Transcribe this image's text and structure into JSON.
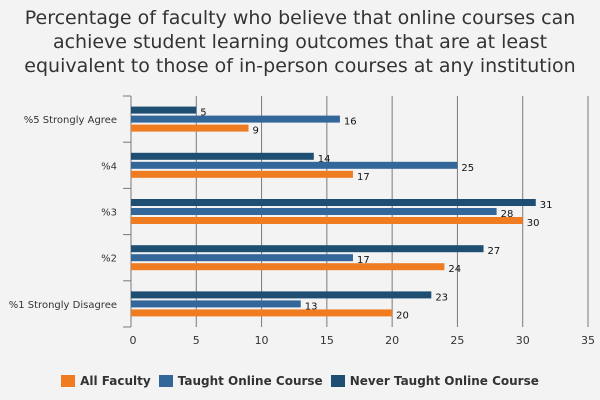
{
  "chart_data": {
    "type": "bar",
    "orientation": "horizontal",
    "title_lines": [
      "Percentage of faculty who believe that online courses can",
      "achieve student learning outcomes that are at least",
      "equivalent to those of in-person courses at any institution"
    ],
    "categories": [
      "%5 Strongly Agree",
      "%4",
      "%3",
      "%2",
      "%1 Strongly Disagree"
    ],
    "series": [
      {
        "name": "Never Taught Online Course",
        "color": "#1f4e73",
        "values": [
          5,
          14,
          31,
          27,
          23
        ]
      },
      {
        "name": "Taught Online Course",
        "color": "#336699",
        "values": [
          16,
          25,
          28,
          17,
          13
        ]
      },
      {
        "name": "All Faculty",
        "color": "#f07c22",
        "values": [
          9,
          17,
          30,
          24,
          20
        ]
      }
    ],
    "legend_order": [
      "All Faculty",
      "Taught Online Course",
      "Never Taught Online Course"
    ],
    "legend_position": "bottom",
    "xlim": [
      0,
      35
    ],
    "x_ticks": [
      0,
      5,
      10,
      15,
      20,
      25,
      30,
      35
    ],
    "grid": "vertical",
    "data_labels": true
  }
}
